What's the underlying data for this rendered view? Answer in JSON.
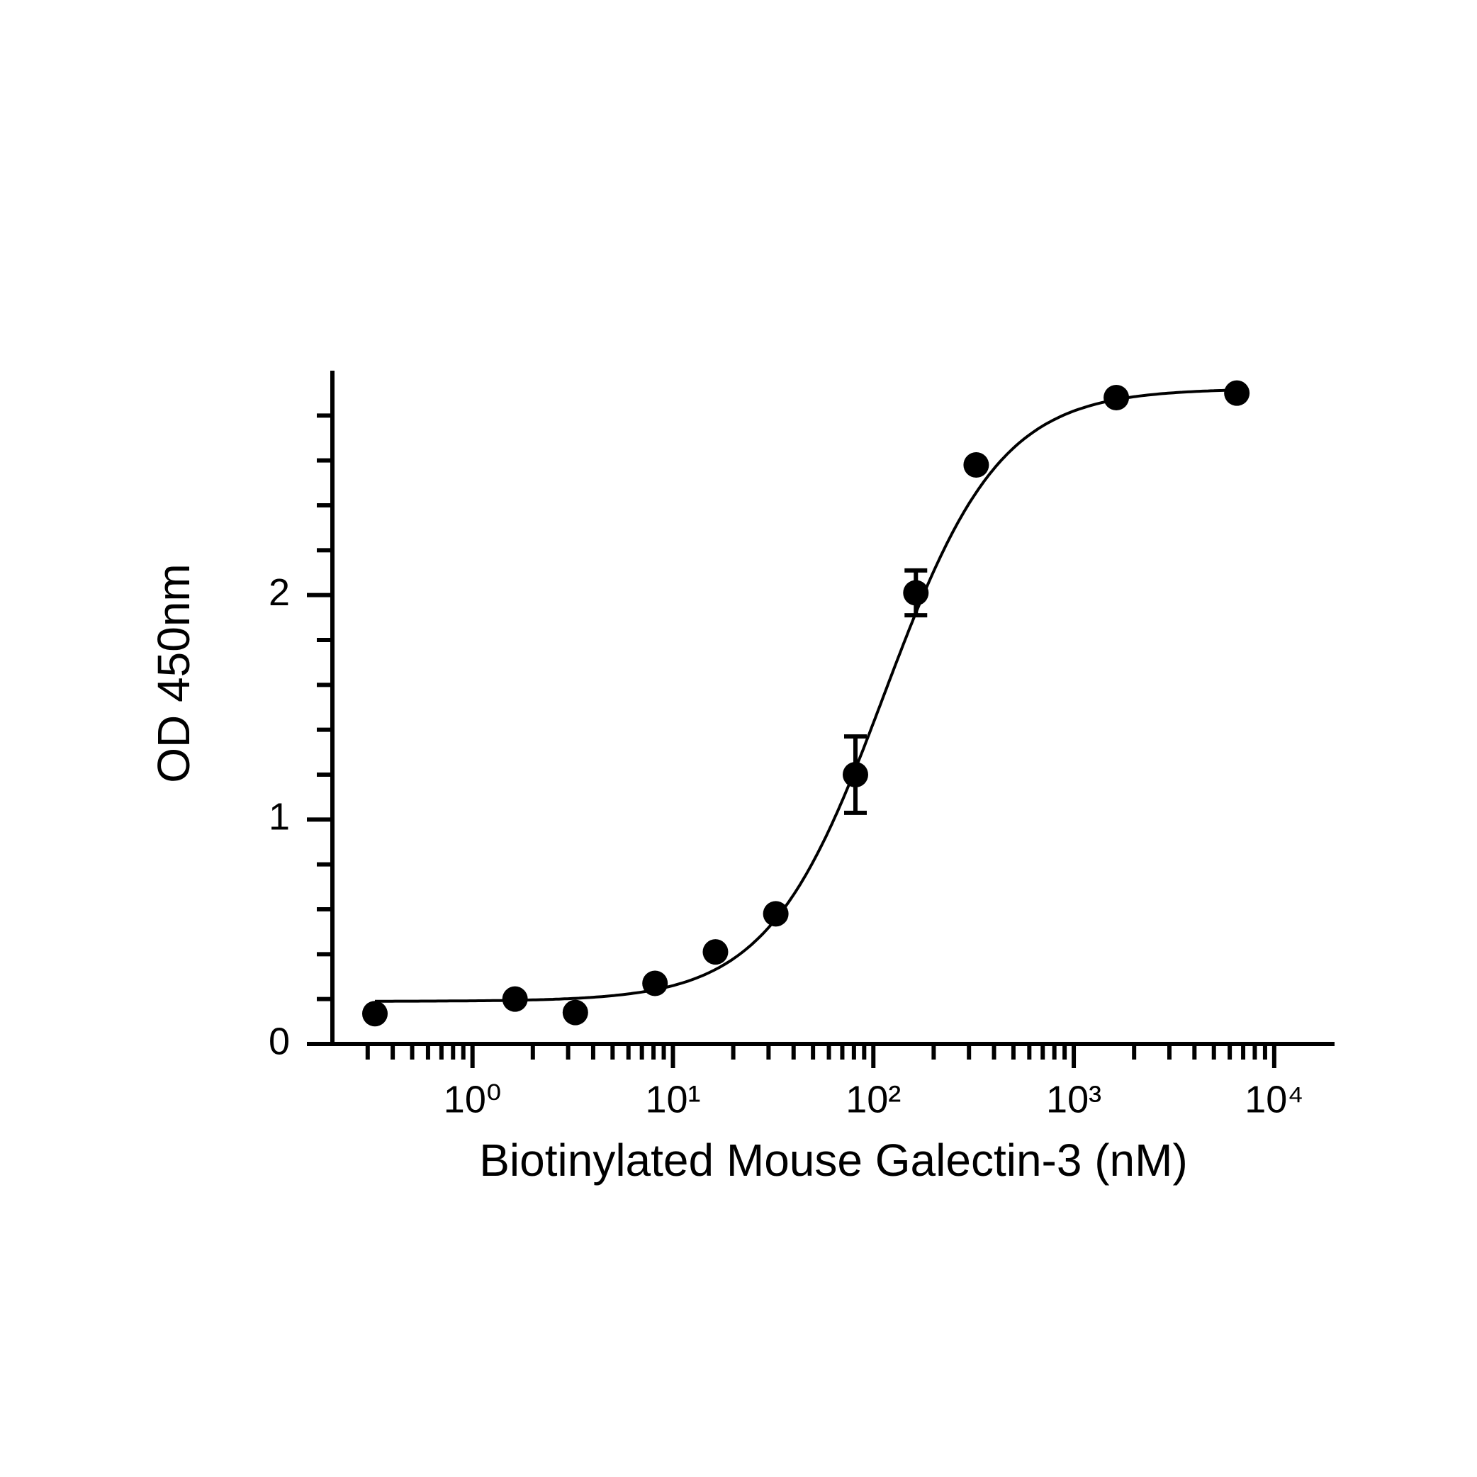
{
  "chart_data": {
    "type": "scatter",
    "x_label": "Biotinylated Mouse Galectin-3 (nM)",
    "y_label": "OD 450nm",
    "xscale": "log",
    "color": "#000000",
    "x": [
      0.326,
      1.63,
      3.26,
      8.14,
      16.3,
      32.6,
      81.4,
      163,
      326,
      1630,
      6510
    ],
    "values": [
      0.135,
      0.2,
      0.14,
      0.27,
      0.41,
      0.58,
      1.2,
      2.01,
      2.58,
      2.88,
      2.9
    ],
    "errors": [
      0,
      0,
      0,
      0,
      0,
      0,
      0.17,
      0.1,
      0,
      0,
      0
    ],
    "fit": {
      "bottom": 0.19,
      "top": 2.92,
      "ec50": 113,
      "hill": 1.5
    },
    "xlim": [
      0.2,
      20000
    ],
    "ylim": [
      0,
      3
    ],
    "xticks": [
      {
        "value": 1,
        "label": "10⁰"
      },
      {
        "value": 10,
        "label": "10¹"
      },
      {
        "value": 100,
        "label": "10²"
      },
      {
        "value": 1000,
        "label": "10³"
      },
      {
        "value": 10000,
        "label": "10⁴"
      }
    ],
    "xminorticks": [
      0.3,
      0.4,
      0.5,
      0.6,
      0.7,
      0.8,
      0.9,
      2,
      3,
      4,
      5,
      6,
      7,
      8,
      9,
      20,
      30,
      40,
      50,
      60,
      70,
      80,
      90,
      200,
      300,
      400,
      500,
      600,
      700,
      800,
      900,
      2000,
      3000,
      4000,
      5000,
      6000,
      7000,
      8000,
      9000
    ],
    "yticks": [
      0,
      1,
      2
    ],
    "yminorticks": [
      0.2,
      0.4,
      0.6,
      0.8,
      1.2,
      1.4,
      1.6,
      1.8,
      2.2,
      2.4,
      2.6,
      2.8
    ]
  }
}
